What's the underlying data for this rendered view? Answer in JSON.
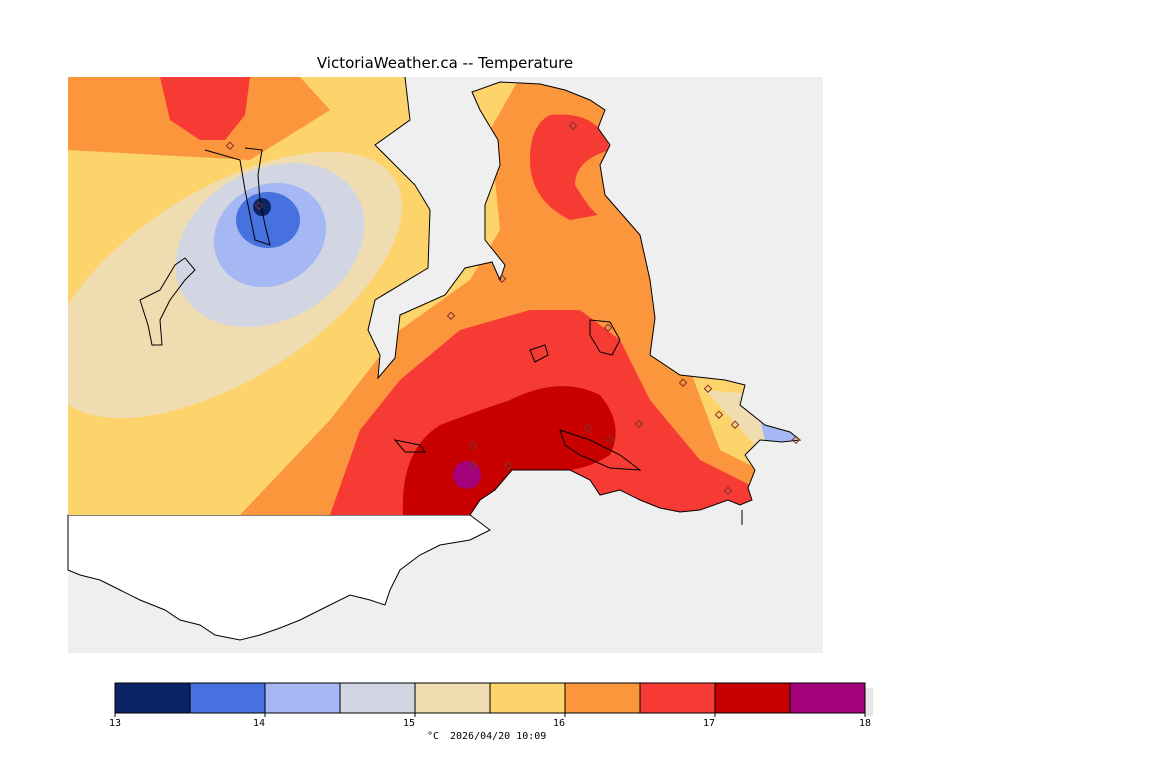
{
  "title": "VictoriaWeather.ca -- Temperature",
  "colorbar": {
    "colors": [
      "#0b2466",
      "#4671de",
      "#a6b8f3",
      "#d1d6e2",
      "#efdcb0",
      "#fdd36b",
      "#fb963d",
      "#f63b35",
      "#c80000",
      "#a4007c"
    ],
    "tick_labels": [
      "13",
      "14",
      "15",
      "16",
      "17",
      "18"
    ],
    "min": 13,
    "max": 18
  },
  "footer": {
    "unit": "°C",
    "timestamp": "2026/04/20 10:09"
  },
  "palette": {
    "water": "#efefef",
    "land_outside": "#ffffff",
    "coastline": "#000000",
    "station_marker": "#c06060"
  },
  "stations_count_shown": 18
}
